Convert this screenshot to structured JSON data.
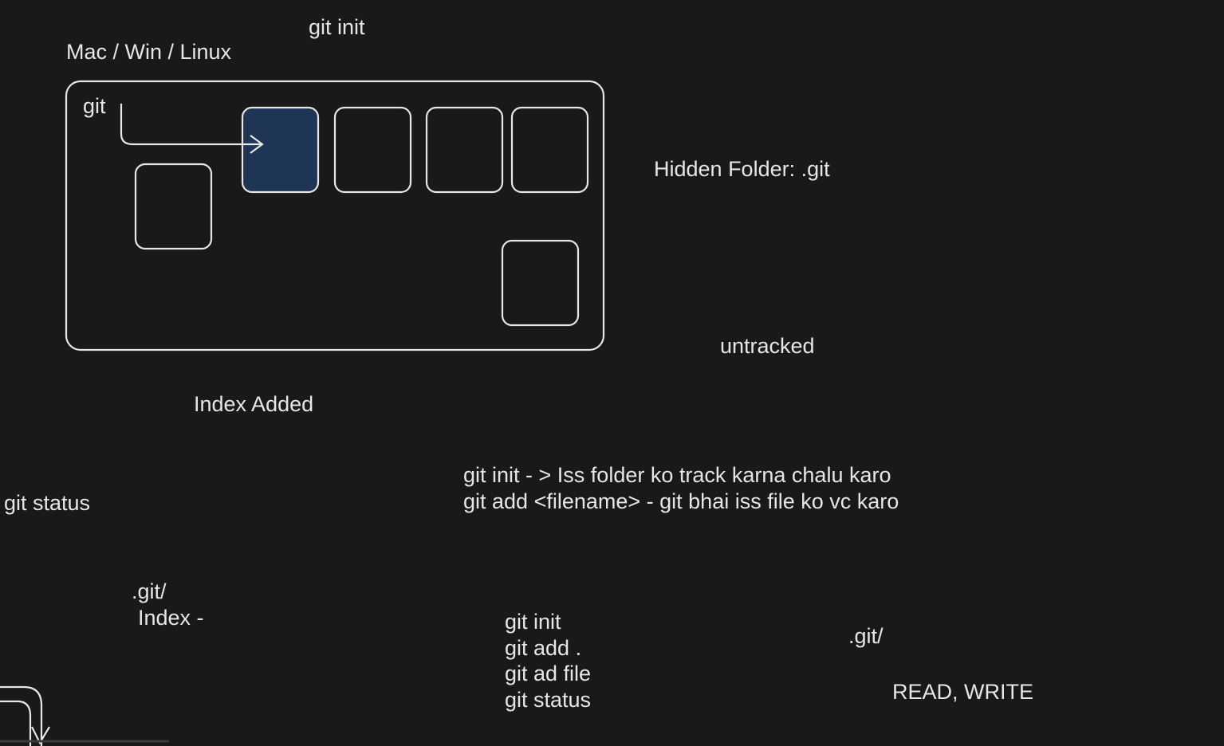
{
  "top_command": "git init",
  "platforms": "Mac / Win / Linux",
  "git_label": "git",
  "hidden_folder": "Hidden Folder: .git",
  "untracked": "untracked",
  "index_added": "Index Added",
  "git_status": "git status",
  "explanations": [
    "git init - > Iss folder ko track karna chalu karo",
    "git add <filename> - git bhai iss file ko vc karo"
  ],
  "git_dir_note": [
    ".git/",
    "Index -"
  ],
  "commands": [
    "git init",
    "git add .",
    "git ad file",
    "git status"
  ],
  "git_dir": ".git/",
  "permissions": "READ, WRITE"
}
